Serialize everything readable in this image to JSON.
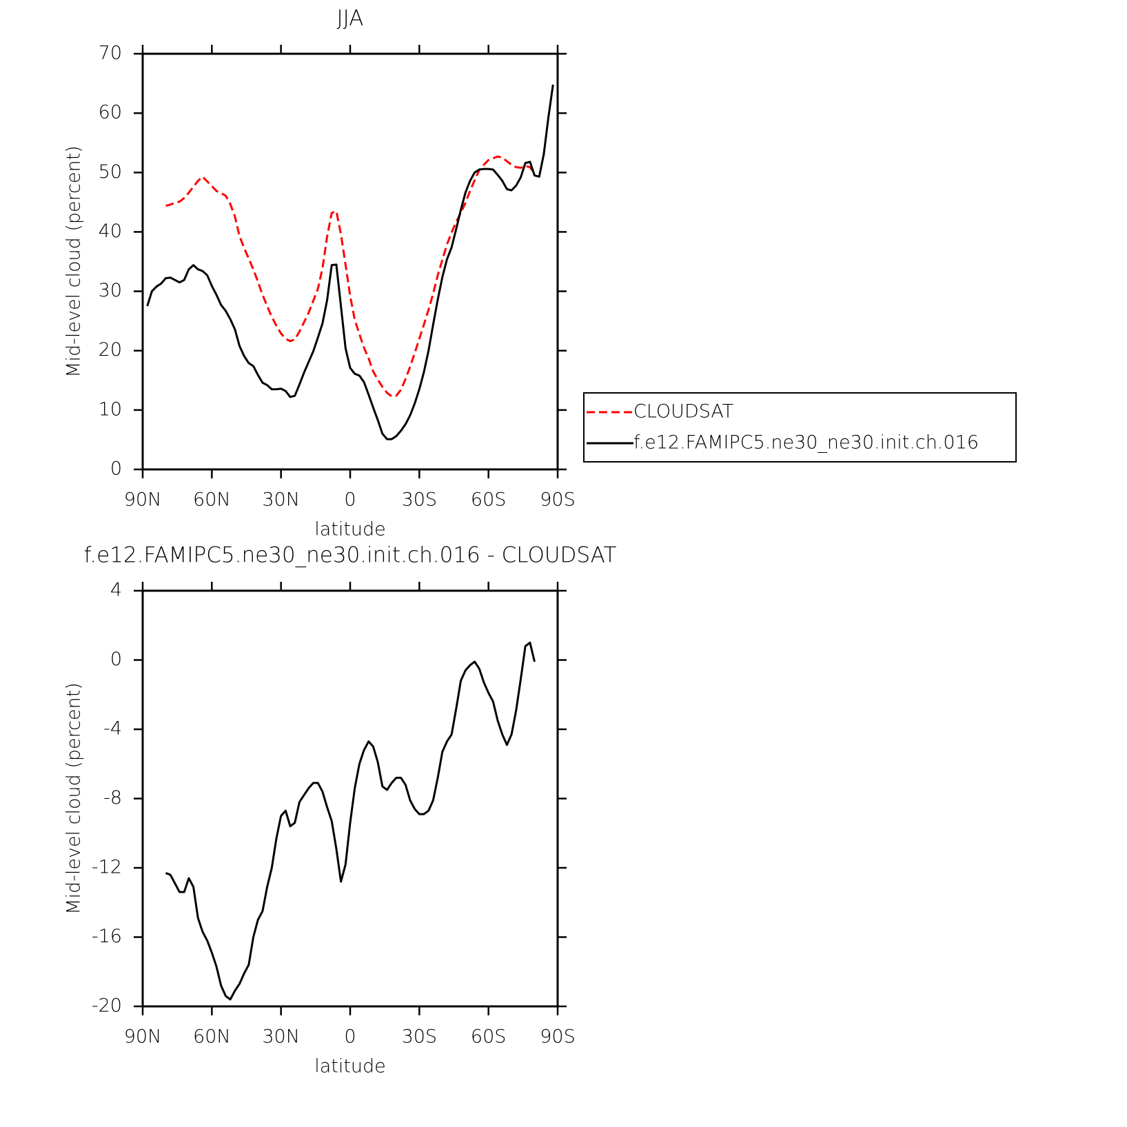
{
  "chart_data": [
    {
      "type": "line",
      "title": "JJA",
      "xlabel": "latitude",
      "ylabel": "Mid-level cloud (percent)",
      "x": [
        88,
        86,
        84,
        82,
        80,
        78,
        76,
        74,
        72,
        70,
        68,
        66,
        64,
        62,
        60,
        58,
        56,
        54,
        52,
        50,
        48,
        46,
        44,
        42,
        40,
        38,
        36,
        34,
        32,
        30,
        28,
        26,
        24,
        22,
        20,
        18,
        16,
        14,
        12,
        10,
        8,
        6,
        4,
        2,
        0,
        -2,
        -4,
        -6,
        -8,
        -10,
        -12,
        -14,
        -16,
        -18,
        -20,
        -22,
        -24,
        -26,
        -28,
        -30,
        -32,
        -34,
        -36,
        -38,
        -40,
        -42,
        -44,
        -46,
        -48,
        -50,
        -52,
        -54,
        -56,
        -58,
        -60,
        -62,
        -64,
        -66,
        -68,
        -70,
        -72,
        -74,
        -76,
        -78,
        -80,
        -82,
        -84,
        -86,
        -88
      ],
      "xlim": [
        90,
        -90
      ],
      "xticks": [
        {
          "value": 90,
          "label": "90N"
        },
        {
          "value": 60,
          "label": "60N"
        },
        {
          "value": 30,
          "label": "30N"
        },
        0,
        {
          "value": -30,
          "label": "30S"
        },
        {
          "value": -60,
          "label": "60S"
        },
        {
          "value": -90,
          "label": "90S"
        }
      ],
      "ylim": [
        0,
        70
      ],
      "yticks": [
        0,
        10,
        20,
        30,
        40,
        50,
        60,
        70
      ],
      "legend": "right",
      "series": [
        {
          "name": "CLOUDSAT",
          "color": "#ff0000",
          "style": "dashed",
          "values": [
            null,
            null,
            null,
            null,
            44.4,
            44.6,
            44.9,
            45.1,
            45.7,
            46.6,
            47.6,
            48.6,
            49.3,
            48.5,
            47.7,
            46.9,
            46.5,
            46.1,
            44.7,
            42.6,
            39.3,
            37.3,
            35.5,
            33.7,
            31.6,
            29.4,
            27.5,
            25.7,
            24.2,
            22.9,
            22.0,
            21.6,
            21.9,
            23.2,
            24.8,
            26.4,
            28.4,
            30.4,
            33.9,
            39.2,
            43.2,
            43.5,
            39.6,
            34.5,
            29.2,
            25.2,
            22.8,
            20.5,
            18.7,
            16.5,
            15.1,
            13.9,
            12.9,
            12.3,
            12.4,
            13.4,
            15.2,
            17.3,
            19.6,
            22.0,
            24.4,
            26.9,
            29.6,
            32.7,
            35.3,
            37.9,
            39.9,
            41.7,
            43.2,
            44.9,
            46.9,
            48.7,
            50.4,
            51.3,
            52.1,
            52.4,
            52.7,
            52.5,
            51.9,
            51.3,
            50.9,
            50.8,
            51.1,
            50.9,
            49.8,
            null,
            null,
            null,
            null
          ]
        },
        {
          "name": "f.e12.FAMIPC5.ne30_ne30.init.ch.016",
          "color": "#000000",
          "style": "solid",
          "values": [
            27.5,
            30.0,
            30.8,
            31.3,
            32.2,
            32.3,
            31.9,
            31.5,
            31.9,
            33.7,
            34.4,
            33.7,
            33.4,
            32.7,
            30.9,
            29.4,
            27.7,
            26.7,
            25.3,
            23.6,
            20.8,
            19.1,
            17.9,
            17.4,
            15.9,
            14.6,
            14.2,
            13.5,
            13.5,
            13.6,
            13.2,
            12.2,
            12.4,
            14.3,
            16.3,
            18.1,
            19.9,
            22.2,
            24.6,
            28.5,
            34.4,
            34.5,
            27.5,
            20.4,
            17.1,
            16.1,
            15.8,
            14.7,
            12.6,
            10.4,
            8.3,
            6.0,
            5.1,
            5.1,
            5.6,
            6.5,
            7.6,
            9.1,
            11.1,
            13.5,
            16.4,
            20.0,
            24.4,
            28.6,
            32.4,
            35.4,
            37.4,
            40.5,
            43.7,
            46.6,
            48.6,
            50.0,
            50.5,
            50.6,
            50.6,
            50.5,
            49.6,
            48.6,
            47.2,
            47.0,
            47.8,
            49.2,
            51.6,
            51.8,
            49.5,
            49.3,
            53.1,
            59.3,
            64.8
          ]
        }
      ]
    },
    {
      "type": "line",
      "title": "f.e12.FAMIPC5.ne30_ne30.init.ch.016 - CLOUDSAT",
      "xlabel": "latitude",
      "ylabel": "Mid-level cloud (percent)",
      "x": [
        80,
        78,
        76,
        74,
        72,
        70,
        68,
        66,
        64,
        62,
        60,
        58,
        56,
        54,
        52,
        50,
        48,
        46,
        44,
        42,
        40,
        38,
        36,
        34,
        32,
        30,
        28,
        26,
        24,
        22,
        20,
        18,
        16,
        14,
        12,
        10,
        8,
        6,
        4,
        2,
        0,
        -2,
        -4,
        -6,
        -8,
        -10,
        -12,
        -14,
        -16,
        -18,
        -20,
        -22,
        -24,
        -26,
        -28,
        -30,
        -32,
        -34,
        -36,
        -38,
        -40,
        -42,
        -44,
        -46,
        -48,
        -50,
        -52,
        -54,
        -56,
        -58,
        -60,
        -62,
        -64,
        -66,
        -68,
        -70,
        -72,
        -74,
        -76,
        -78,
        -80
      ],
      "xlim": [
        90,
        -90
      ],
      "xticks": [
        {
          "value": 90,
          "label": "90N"
        },
        {
          "value": 60,
          "label": "60N"
        },
        {
          "value": 30,
          "label": "30N"
        },
        0,
        {
          "value": -30,
          "label": "30S"
        },
        {
          "value": -60,
          "label": "60S"
        },
        {
          "value": -90,
          "label": "90S"
        }
      ],
      "ylim": [
        -20,
        4
      ],
      "yticks": [
        -20,
        -16,
        -12,
        -8,
        -4,
        0,
        4
      ],
      "series": [
        {
          "color": "#000000",
          "style": "solid",
          "values": [
            -12.3,
            -12.4,
            -12.9,
            -13.4,
            -13.4,
            -12.6,
            -13.1,
            -14.9,
            -15.7,
            -16.2,
            -16.9,
            -17.7,
            -18.8,
            -19.4,
            -19.6,
            -19.1,
            -18.7,
            -18.1,
            -17.6,
            -16.0,
            -15.0,
            -14.5,
            -13.1,
            -12.0,
            -10.3,
            -9.0,
            -8.7,
            -9.6,
            -9.4,
            -8.2,
            -7.8,
            -7.4,
            -7.1,
            -7.1,
            -7.6,
            -8.5,
            -9.3,
            -10.9,
            -12.8,
            -11.8,
            -9.4,
            -7.4,
            -6.0,
            -5.2,
            -4.7,
            -5.0,
            -5.9,
            -7.3,
            -7.5,
            -7.1,
            -6.8,
            -6.8,
            -7.2,
            -8.1,
            -8.6,
            -8.9,
            -8.9,
            -8.7,
            -8.1,
            -6.8,
            -5.3,
            -4.7,
            -4.3,
            -2.8,
            -1.2,
            -0.6,
            -0.3,
            -0.1,
            -0.5,
            -1.3,
            -1.9,
            -2.4,
            -3.5,
            -4.3,
            -4.9,
            -4.3,
            -2.9,
            -1.1,
            0.8,
            1.0,
            -0.1
          ]
        }
      ]
    }
  ]
}
